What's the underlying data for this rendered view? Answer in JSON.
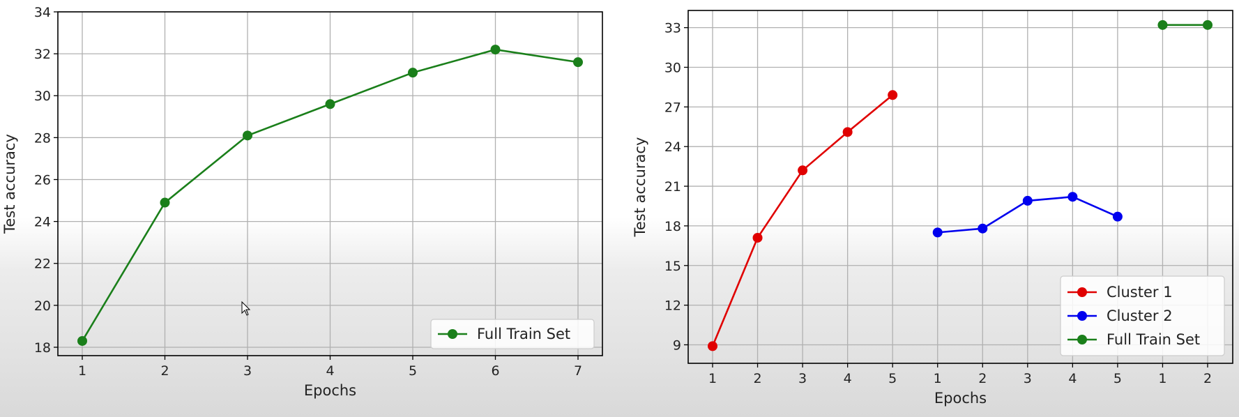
{
  "chart_data": [
    {
      "type": "line",
      "xlabel": "Epochs",
      "ylabel": "Test accuracy",
      "ylim": [
        17.6,
        34
      ],
      "yticks": [
        18,
        20,
        22,
        24,
        26,
        28,
        30,
        32,
        34
      ],
      "categories": [
        "1",
        "2",
        "3",
        "4",
        "5",
        "6",
        "7"
      ],
      "grid": true,
      "legend_position": "lower-right",
      "series": [
        {
          "name": "Full Train Set",
          "color": "#1a7f1a",
          "marker": "circle",
          "x": [
            1,
            2,
            3,
            4,
            5,
            6,
            7
          ],
          "y": [
            18.3,
            24.9,
            28.1,
            29.6,
            31.1,
            32.2,
            31.6
          ]
        }
      ]
    },
    {
      "type": "line",
      "xlabel": "Epochs",
      "ylabel": "Test accuracy",
      "ylim": [
        7.6,
        34.3
      ],
      "yticks": [
        9,
        12,
        15,
        18,
        21,
        24,
        27,
        30,
        33
      ],
      "categories": [
        "1",
        "2",
        "3",
        "4",
        "5",
        "1",
        "2",
        "3",
        "4",
        "5",
        "1",
        "2"
      ],
      "grid": true,
      "legend_position": "lower-right",
      "series": [
        {
          "name": "Cluster 1",
          "color": "#e00000",
          "marker": "circle",
          "x": [
            "1",
            "2",
            "3",
            "4",
            "5"
          ],
          "y": [
            8.9,
            17.1,
            22.2,
            25.1,
            27.9
          ]
        },
        {
          "name": "Cluster 2",
          "color": "#0000ee",
          "marker": "circle",
          "x": [
            "1",
            "2",
            "3",
            "4",
            "5"
          ],
          "y": [
            17.5,
            17.8,
            19.9,
            20.2,
            18.7
          ]
        },
        {
          "name": "Full Train Set",
          "color": "#1a7f1a",
          "marker": "circle",
          "x": [
            "1",
            "2"
          ],
          "y": [
            33.2,
            33.2
          ]
        }
      ]
    }
  ]
}
